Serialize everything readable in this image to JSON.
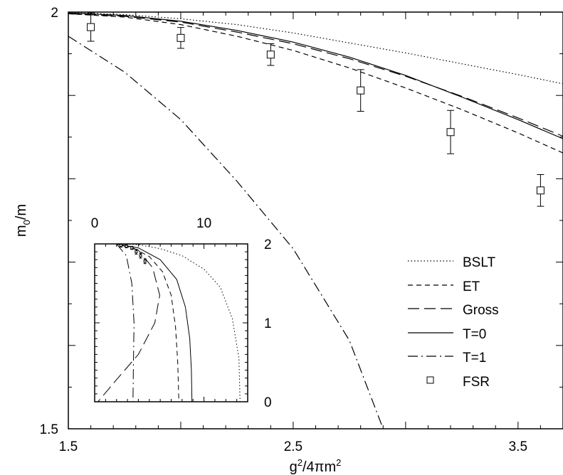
{
  "chart_data": [
    {
      "type": "line",
      "title": "",
      "xlabel": "g<sup>2</sup>/4πm<sup>2</sup>",
      "xlabel_parts": [
        "g",
        "2",
        "/4πm",
        "2"
      ],
      "ylabel_parts": [
        "m",
        "0",
        "/m"
      ],
      "xlim": [
        1.5,
        3.7
      ],
      "ylim": [
        1.5,
        2.0
      ],
      "xticks": [
        1.5,
        2.5,
        3.5
      ],
      "xtick_labels": [
        "1.5",
        "2.5",
        "3.5"
      ],
      "yticks": [
        1.5,
        2.0
      ],
      "ytick_labels": [
        "1.5",
        "2"
      ],
      "grid": false,
      "legend_position": "right",
      "series": [
        {
          "name": "BSLT",
          "style": "dotted",
          "x": [
            1.5,
            1.75,
            2.0,
            2.25,
            2.5,
            2.75,
            3.0,
            3.25,
            3.5,
            3.7
          ],
          "y": [
            1.9995,
            1.997,
            1.992,
            1.985,
            1.975,
            1.963,
            1.951,
            1.938,
            1.925,
            1.914
          ]
        },
        {
          "name": "ET",
          "style": "dashed",
          "x": [
            1.5,
            1.75,
            2.0,
            2.25,
            2.5,
            2.75,
            3.0,
            3.25,
            3.5,
            3.7
          ],
          "y": [
            1.998,
            1.994,
            1.985,
            1.971,
            1.954,
            1.933,
            1.909,
            1.883,
            1.855,
            1.831
          ]
        },
        {
          "name": "Gross",
          "style": "longdash",
          "x": [
            1.5,
            1.75,
            2.0,
            2.25,
            2.5,
            2.75,
            3.0,
            3.25,
            3.5,
            3.7
          ],
          "y": [
            1.998,
            1.995,
            1.988,
            1.976,
            1.962,
            1.944,
            1.923,
            1.899,
            1.873,
            1.851
          ]
        },
        {
          "name": "T=0",
          "style": "solid",
          "x": [
            1.5,
            1.75,
            2.0,
            2.25,
            2.5,
            2.75,
            3.0,
            3.25,
            3.5,
            3.7
          ],
          "y": [
            1.999,
            1.996,
            1.989,
            1.978,
            1.964,
            1.946,
            1.924,
            1.898,
            1.871,
            1.848
          ]
        },
        {
          "name": "T=1",
          "style": "dashdot",
          "x": [
            1.5,
            1.75,
            2.0,
            2.25,
            2.5,
            2.75,
            2.9
          ],
          "y": [
            1.971,
            1.928,
            1.871,
            1.797,
            1.716,
            1.606,
            1.5
          ]
        }
      ],
      "points": {
        "name": "FSR",
        "x": [
          1.6,
          2.0,
          2.4,
          2.8,
          3.2,
          3.6
        ],
        "y": [
          1.982,
          1.969,
          1.949,
          1.906,
          1.856,
          1.786
        ],
        "yerr": [
          0.017,
          0.0125,
          0.013,
          0.025,
          0.026,
          0.019
        ]
      }
    },
    {
      "type": "line",
      "title": "inset",
      "xlim": [
        0,
        14
      ],
      "ylim": [
        0,
        2
      ],
      "xticks": [
        0,
        10
      ],
      "xtick_labels": [
        "0",
        "10"
      ],
      "yticks": [
        0,
        1,
        2
      ],
      "ytick_labels": [
        "0",
        "1",
        "2"
      ],
      "series": [
        {
          "name": "BSLT",
          "style": "dotted",
          "x": [
            2.0,
            4.0,
            6.0,
            8.0,
            10.0,
            11.5,
            12.6,
            13.2,
            13.3
          ],
          "y": [
            2.0,
            1.99,
            1.94,
            1.85,
            1.68,
            1.45,
            1.05,
            0.55,
            0.0
          ]
        },
        {
          "name": "ET",
          "style": "dashed",
          "x": [
            2.0,
            3.5,
            5.0,
            6.2,
            7.0,
            7.4,
            7.6,
            7.7
          ],
          "y": [
            2.0,
            1.95,
            1.84,
            1.65,
            1.35,
            0.95,
            0.5,
            0.0
          ]
        },
        {
          "name": "Gross",
          "style": "longdash",
          "x": [
            2.0,
            4.0,
            5.3,
            5.95,
            5.5,
            4.0,
            2.0,
            0.3
          ],
          "y": [
            2.0,
            1.92,
            1.7,
            1.35,
            1.0,
            0.6,
            0.28,
            0.0
          ]
        },
        {
          "name": "T=0",
          "style": "solid",
          "x": [
            2.0,
            4.0,
            6.0,
            7.5,
            8.3,
            8.7,
            8.85,
            8.9
          ],
          "y": [
            2.0,
            1.95,
            1.8,
            1.55,
            1.2,
            0.8,
            0.4,
            0.0
          ]
        },
        {
          "name": "T=1",
          "style": "dashdot",
          "x": [
            2.0,
            2.9,
            3.4,
            3.6,
            3.55,
            3.5
          ],
          "y": [
            2.0,
            1.85,
            1.5,
            1.0,
            0.5,
            0.0
          ]
        }
      ],
      "points": {
        "name": "FSR",
        "x": [
          2.4,
          2.9,
          3.4,
          3.8,
          4.2,
          4.6
        ],
        "y": [
          1.98,
          1.97,
          1.95,
          1.9,
          1.85,
          1.78
        ],
        "yerr": [
          0.02,
          0.02,
          0.02,
          0.03,
          0.03,
          0.03
        ]
      }
    }
  ],
  "legend": {
    "entries": [
      {
        "label": "BSLT",
        "style": "dotted"
      },
      {
        "label": "ET",
        "style": "dashed"
      },
      {
        "label": "Gross",
        "style": "longdash"
      },
      {
        "label": "T=0",
        "style": "solid"
      },
      {
        "label": "T=1",
        "style": "dashdot"
      },
      {
        "label": "FSR",
        "style": "square"
      }
    ]
  }
}
